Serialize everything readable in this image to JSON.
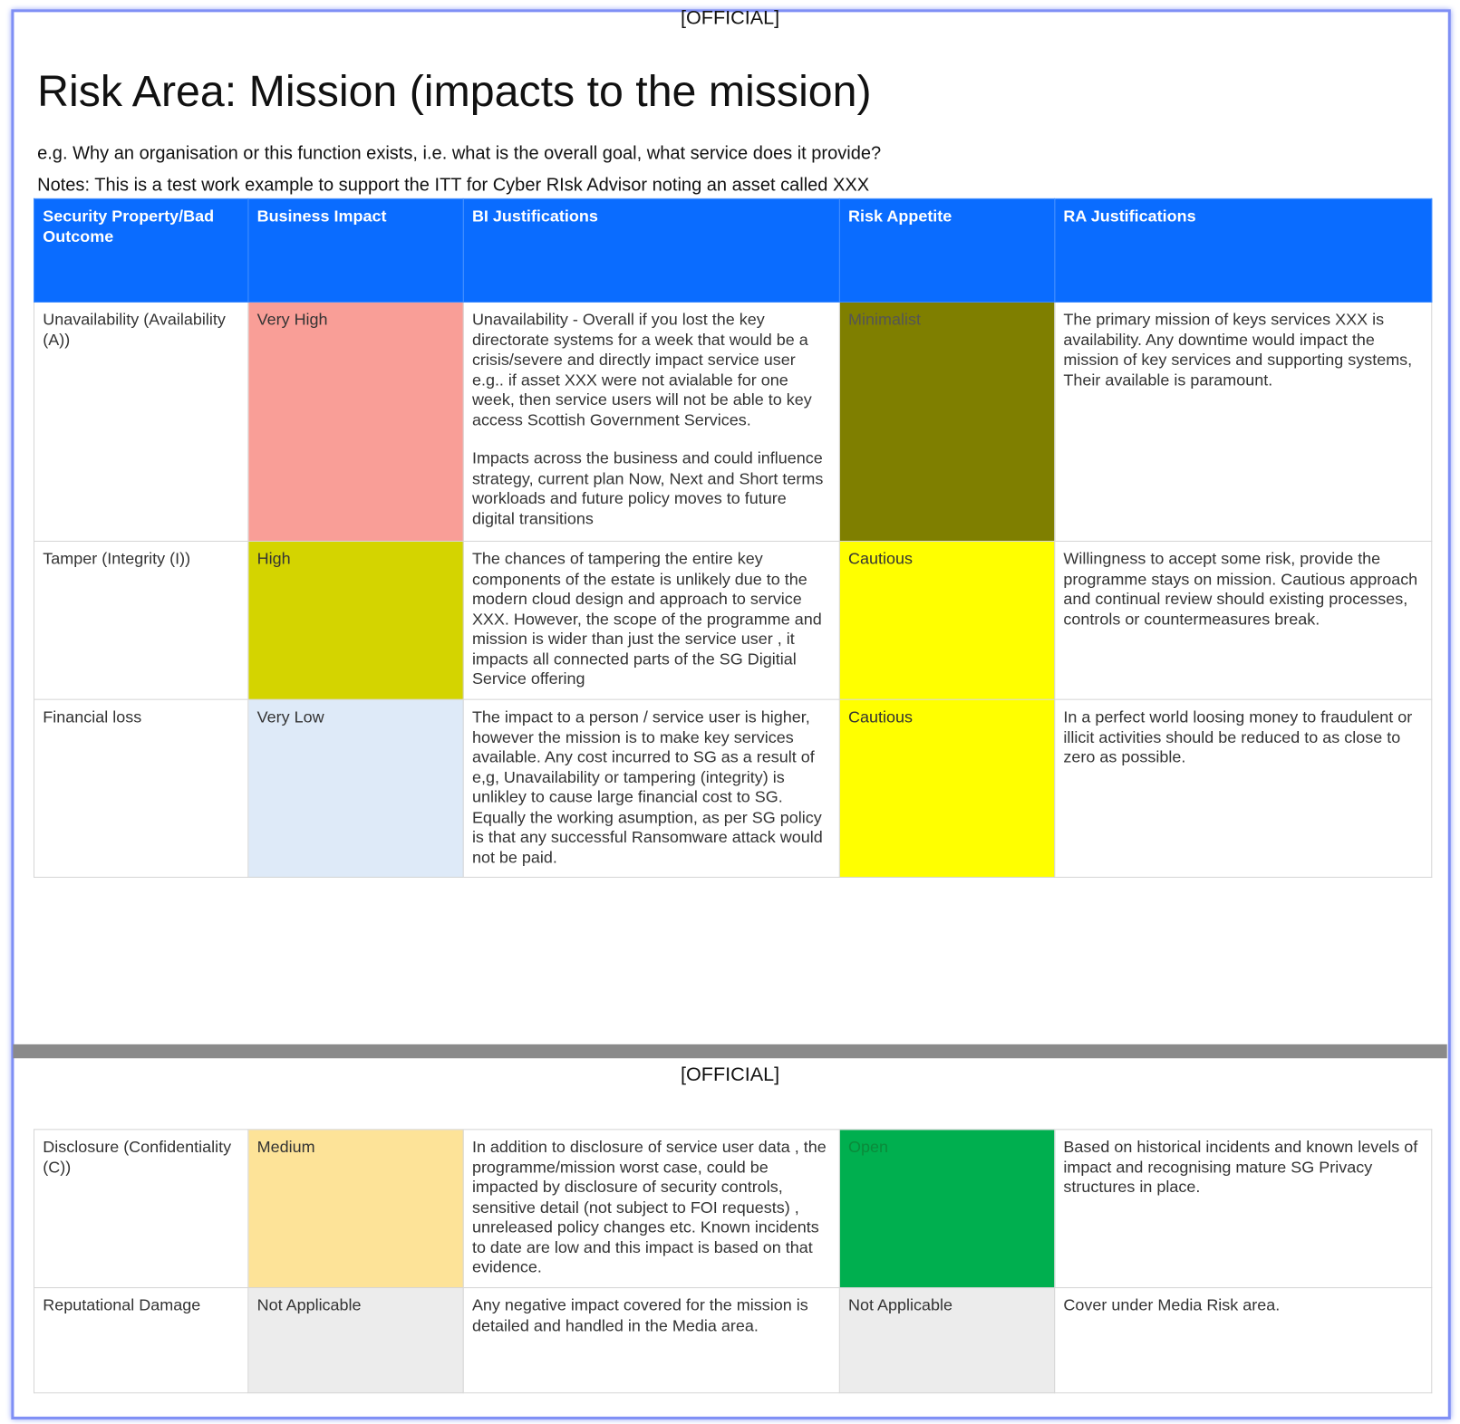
{
  "header_mark": "[OFFICIAL]",
  "title": "Risk Area: Mission (impacts to the mission)",
  "subtitle": "e.g. Why an organisation or this function exists, i.e. what is the overall goal, what service does it provide?",
  "notes": "Notes: This is a test work example to support the ITT for Cyber RIsk Advisor noting an asset called XXX",
  "columns": [
    "Security Property/Bad Outcome",
    "Business Impact",
    "BI Justifications",
    "Risk Appetite",
    "RA Justifications"
  ],
  "rows": [
    {
      "outcome": "Unavailability (Availability (A))",
      "impact": "Very High",
      "impact_color": "#f99e97",
      "bi": [
        "Unavailability - Overall if you lost the key directorate systems for a week that would be a crisis/severe and directly impact service user e.g.. if asset XXX were not avialable for one week, then service users will not be able to key access Scottish Government Services.",
        "Impacts across the business and could influence strategy, current plan Now, Next and Short terms workloads and future policy moves to future digital transitions"
      ],
      "appetite": "Minimalist",
      "appetite_color": "#7f7f00",
      "ra": "The primary mission of keys services XXX is availability. Any downtime would impact the mission of key services and supporting systems, Their available is paramount."
    },
    {
      "outcome": "Tamper (Integrity (I))",
      "impact": "High",
      "impact_color": "#d4d400",
      "bi": [
        "The chances of tampering the entire key components of the estate is unlikely due to the modern cloud design and approach to service XXX. However, the scope of the programme and mission is wider than just the service user , it impacts all connected parts of the SG Digitial Service offering"
      ],
      "appetite": "Cautious",
      "appetite_color": "#ffff00",
      "ra": "Willingness to accept some risk, provide the programme stays on mission. Cautious approach and continual review should existing processes, controls or countermeasures break."
    },
    {
      "outcome": "Financial loss",
      "impact": "Very Low",
      "impact_color": "#deeaf8",
      "bi": [
        "The impact to a person / service user is higher, however the mission is to make key services available. Any cost incurred to SG as a result of e,g, Unavailability or tampering (integrity) is unlikley to cause large financial cost to SG.  Equally the working asumption, as per SG policy is that any successful Ransomware attack would not be paid."
      ],
      "appetite": "Cautious",
      "appetite_color": "#ffff00",
      "ra": "In a perfect world loosing money to fraudulent or illicit activities should be reduced to as close to zero as possible."
    },
    {
      "outcome": "Disclosure (Confidentiality (C))",
      "impact": "Medium",
      "impact_color": "#fde398",
      "bi": [
        "In addition to disclosure of service user data , the programme/mission worst case, could be impacted by disclosure of security controls, sensitive detail (not subject to FOI requests) , unreleased policy changes etc. Known incidents to date are low and this impact is based on that evidence."
      ],
      "appetite": "Open",
      "appetite_color": "#00af4f",
      "ra": "Based on historical incidents and known levels of impact and recognising mature SG Privacy structures in place."
    },
    {
      "outcome": "Reputational Damage",
      "impact": "Not Applicable",
      "impact_color": "#ececec",
      "bi": [
        "Any negative impact covered for the mission is detailed and handled in the Media area."
      ],
      "appetite": "Not Applicable",
      "appetite_color": "#ececec",
      "ra": "Cover under Media Risk area."
    }
  ],
  "colors": {
    "header_bg": "#0a6cff",
    "frame_border": "#7f8ff5",
    "page_break": "#8a8a8a"
  }
}
